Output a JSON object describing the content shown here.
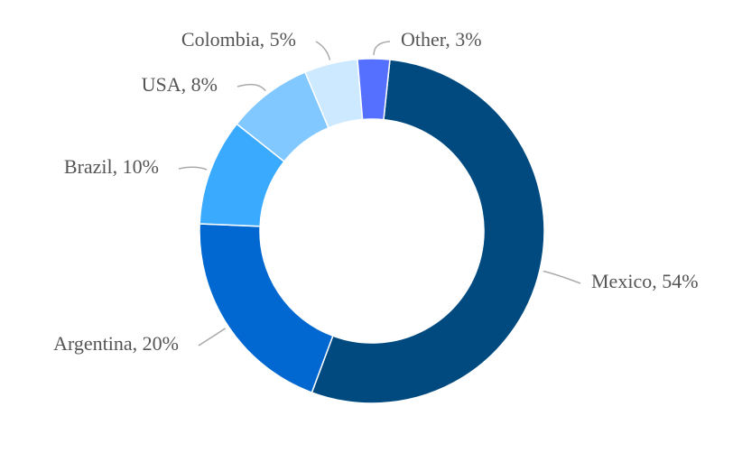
{
  "chart_data": {
    "type": "donut",
    "values": [
      54,
      20,
      10,
      8,
      5,
      3
    ],
    "value_labels": [
      "Mexico, 54%",
      "Argentina, 20%",
      "Brazil, 10%",
      "USA, 8%",
      "Colombia, 5%",
      "Other, 3%"
    ],
    "colors": [
      "#004a7f",
      "#0068d0",
      "#3aaaff",
      "#80c8ff",
      "#cce9ff",
      "#5570ff"
    ]
  }
}
